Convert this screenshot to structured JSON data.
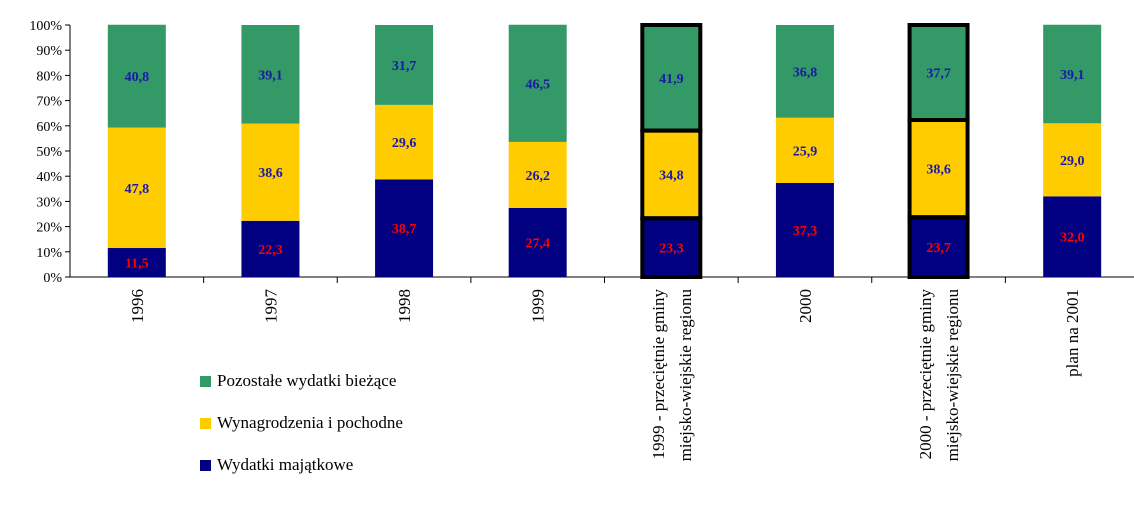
{
  "chart_data": {
    "type": "bar",
    "stacked": true,
    "categories": [
      "1996",
      "1997",
      "1998",
      "1999",
      "1999 - przeciętnie gminy miejsko-wiejskie regionu",
      "2000",
      "2000 - przeciętnie gminy miejsko-wiejskie regionu",
      "plan na 2001"
    ],
    "category_lines": [
      [
        "1996"
      ],
      [
        "1997"
      ],
      [
        "1998"
      ],
      [
        "1999"
      ],
      [
        "1999 - przeciętnie gminy",
        "miejsko-wiejskie regionu"
      ],
      [
        "2000"
      ],
      [
        "2000 - przeciętnie gminy",
        "miejsko-wiejskie regionu"
      ],
      [
        "plan na 2001"
      ]
    ],
    "highlighted_categories": [
      4,
      6
    ],
    "series": [
      {
        "name": "Wydatki majątkowe",
        "color": "#000080",
        "label_color": "#ff0000",
        "values": [
          11.5,
          22.3,
          38.7,
          27.4,
          23.3,
          37.3,
          23.7,
          32.0
        ],
        "labels": [
          "11,5",
          "22,3",
          "38,7",
          "27,4",
          "23,3",
          "37,3",
          "23,7",
          "32,0"
        ]
      },
      {
        "name": "Wynagrodzenia i pochodne",
        "color": "#ffcc00",
        "label_color": "#1a1aa6",
        "values": [
          47.8,
          38.6,
          29.6,
          26.2,
          34.8,
          25.9,
          38.6,
          29.0
        ],
        "labels": [
          "47,8",
          "38,6",
          "29,6",
          "26,2",
          "34,8",
          "25,9",
          "38,6",
          "29,0"
        ]
      },
      {
        "name": "Pozostałe wydatki bieżące",
        "color": "#339966",
        "label_color": "#1a1aa6",
        "values": [
          40.8,
          39.1,
          31.7,
          46.5,
          41.9,
          36.8,
          37.7,
          39.1
        ],
        "labels": [
          "40,8",
          "39,1",
          "31,7",
          "46,5",
          "41,9",
          "36,8",
          "37,7",
          "39,1"
        ]
      }
    ],
    "y_ticks": [
      "0%",
      "10%",
      "20%",
      "30%",
      "40%",
      "50%",
      "60%",
      "70%",
      "80%",
      "90%",
      "100%"
    ],
    "ylim": [
      0,
      100
    ],
    "legend": {
      "placement": "bottom-left",
      "order": [
        "Pozostałe wydatki bieżące",
        "Wynagrodzenia i pochodne",
        "Wydatki majątkowe"
      ]
    }
  }
}
